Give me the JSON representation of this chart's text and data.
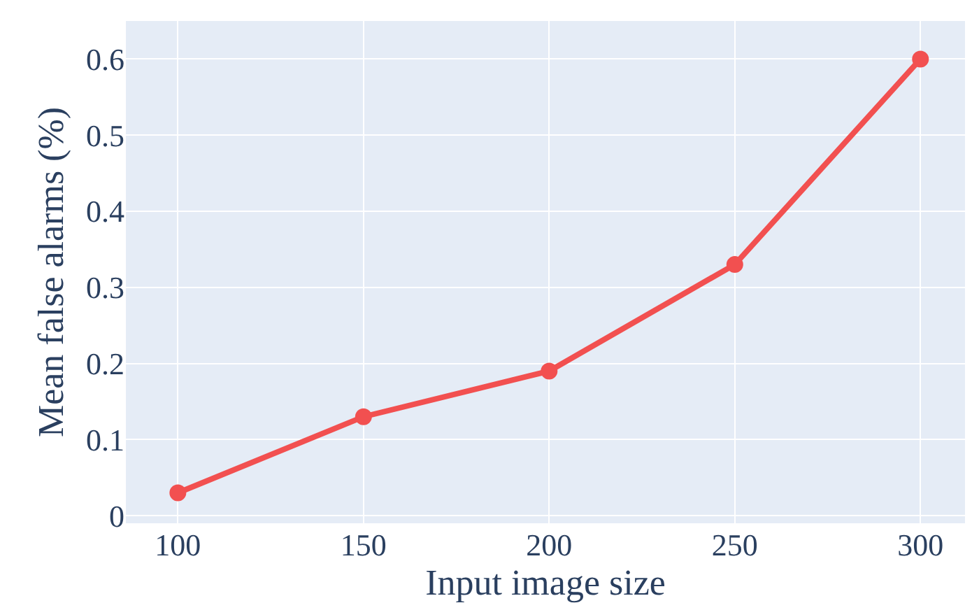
{
  "chart_data": {
    "type": "line",
    "xlabel": "Input image size",
    "ylabel": "Mean false alarms (%)",
    "x": [
      100,
      150,
      200,
      250,
      300
    ],
    "series": [
      {
        "color": "#f25050",
        "values": [
          0.03,
          0.13,
          0.19,
          0.33,
          0.6
        ]
      }
    ],
    "xlim": [
      86,
      312
    ],
    "xticks": [
      100,
      150,
      200,
      250,
      300
    ],
    "ylim": [
      -0.01,
      0.65
    ],
    "yticks": [
      0,
      0.1,
      0.2,
      0.3,
      0.4,
      0.5,
      0.6
    ],
    "grid": true,
    "marker": "circle",
    "line_style": "solid"
  }
}
